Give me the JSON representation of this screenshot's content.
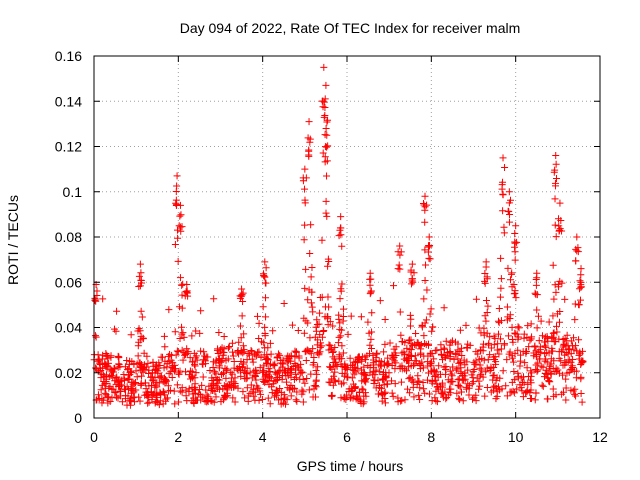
{
  "chart_data": {
    "type": "scatter",
    "title": "Day 094 of 2022, Rate Of TEC Index for receiver malm",
    "xlabel": "GPS time / hours",
    "ylabel": "ROTI / TECUs",
    "xlim": [
      0,
      12
    ],
    "ylim": [
      0,
      0.16
    ],
    "xticks": [
      0,
      2,
      4,
      6,
      8,
      10,
      12
    ],
    "xtick_labels": [
      "0",
      "2",
      "4",
      "6",
      "8",
      "10",
      "12"
    ],
    "yticks": [
      0,
      0.02,
      0.04,
      0.06,
      0.08,
      0.1,
      0.12,
      0.14,
      0.16
    ],
    "ytick_labels": [
      "0",
      "0.02",
      "0.04",
      "0.06",
      "0.08",
      "0.1",
      "0.12",
      "0.14",
      "0.16"
    ],
    "grid": true,
    "marker": "+",
    "color": "#ff0000",
    "x_extent_hours": [
      0,
      11.6
    ],
    "baseline_roti": [
      [
        0.0,
        0.018
      ],
      [
        0.5,
        0.017
      ],
      [
        1.0,
        0.015
      ],
      [
        1.5,
        0.016
      ],
      [
        2.0,
        0.018
      ],
      [
        2.5,
        0.018
      ],
      [
        3.0,
        0.019
      ],
      [
        3.5,
        0.02
      ],
      [
        4.0,
        0.018
      ],
      [
        4.5,
        0.017
      ],
      [
        5.0,
        0.019
      ],
      [
        5.5,
        0.03
      ],
      [
        6.0,
        0.016
      ],
      [
        6.5,
        0.017
      ],
      [
        7.0,
        0.019
      ],
      [
        7.5,
        0.022
      ],
      [
        8.0,
        0.02
      ],
      [
        8.5,
        0.021
      ],
      [
        9.0,
        0.02
      ],
      [
        9.5,
        0.022
      ],
      [
        10.0,
        0.026
      ],
      [
        10.5,
        0.022
      ],
      [
        11.0,
        0.024
      ],
      [
        11.5,
        0.02
      ]
    ],
    "peaks": [
      {
        "x": 0.05,
        "y": 0.059
      },
      {
        "x": 1.1,
        "y": 0.068
      },
      {
        "x": 1.97,
        "y": 0.107
      },
      {
        "x": 2.05,
        "y": 0.094
      },
      {
        "x": 2.2,
        "y": 0.059
      },
      {
        "x": 3.5,
        "y": 0.057
      },
      {
        "x": 4.05,
        "y": 0.069
      },
      {
        "x": 5.0,
        "y": 0.11
      },
      {
        "x": 5.1,
        "y": 0.131
      },
      {
        "x": 5.45,
        "y": 0.155
      },
      {
        "x": 5.5,
        "y": 0.147
      },
      {
        "x": 5.52,
        "y": 0.125
      },
      {
        "x": 5.85,
        "y": 0.089
      },
      {
        "x": 6.55,
        "y": 0.064
      },
      {
        "x": 7.25,
        "y": 0.076
      },
      {
        "x": 7.55,
        "y": 0.068
      },
      {
        "x": 7.85,
        "y": 0.098
      },
      {
        "x": 7.95,
        "y": 0.08
      },
      {
        "x": 9.3,
        "y": 0.069
      },
      {
        "x": 9.7,
        "y": 0.115
      },
      {
        "x": 9.85,
        "y": 0.1
      },
      {
        "x": 10.0,
        "y": 0.085
      },
      {
        "x": 10.5,
        "y": 0.064
      },
      {
        "x": 10.95,
        "y": 0.116
      },
      {
        "x": 11.05,
        "y": 0.095
      },
      {
        "x": 11.45,
        "y": 0.08
      },
      {
        "x": 11.55,
        "y": 0.066
      }
    ]
  }
}
